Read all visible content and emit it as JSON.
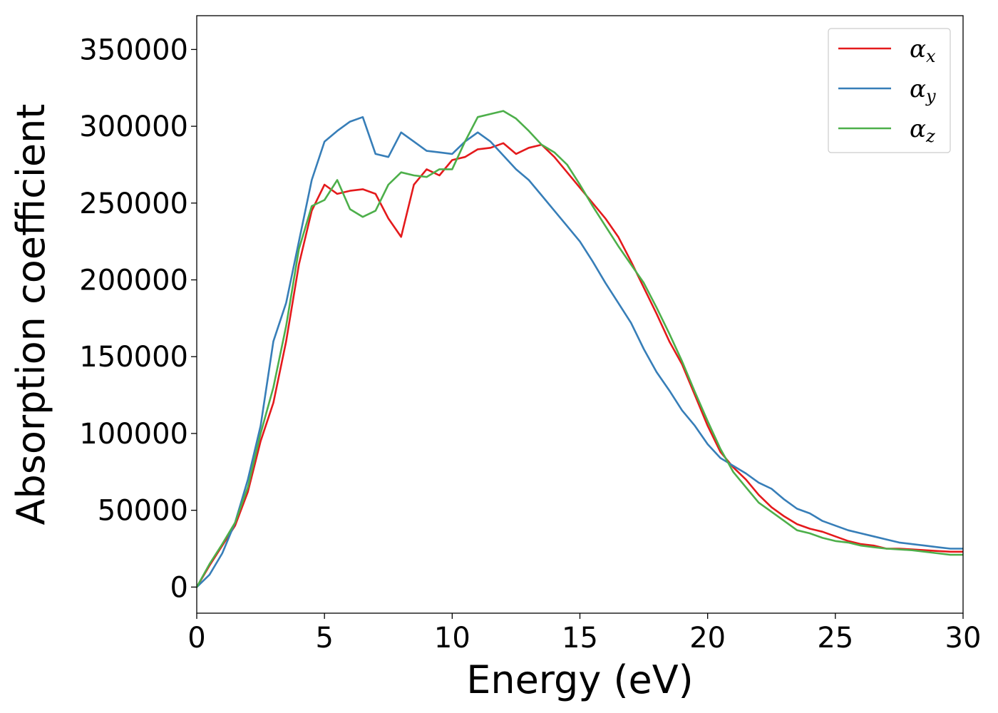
{
  "chart_data": {
    "type": "line",
    "title": "",
    "xlabel": "Energy (eV)",
    "ylabel": "Absorption coefficient",
    "xlim": [
      0,
      30
    ],
    "ylim": [
      -17000,
      372000
    ],
    "xticks": [
      0,
      5,
      10,
      15,
      20,
      25,
      30
    ],
    "yticks": [
      0,
      50000,
      100000,
      150000,
      200000,
      250000,
      300000,
      350000
    ],
    "grid": false,
    "legend_position": "top-right",
    "series": [
      {
        "name": "α_x",
        "label_base": "α",
        "label_sub": "x",
        "color": "#e41a1c",
        "x": [
          0,
          0.5,
          1,
          1.5,
          2,
          2.5,
          3,
          3.5,
          4,
          4.5,
          5,
          5.5,
          6,
          6.5,
          7,
          7.5,
          8,
          8.5,
          9,
          9.5,
          10,
          10.5,
          11,
          11.5,
          12,
          12.5,
          13,
          13.5,
          14,
          14.5,
          15,
          15.5,
          16,
          16.5,
          17,
          17.5,
          18,
          18.5,
          19,
          19.5,
          20,
          20.5,
          21,
          21.5,
          22,
          22.5,
          23,
          23.5,
          24,
          24.5,
          25,
          25.5,
          26,
          26.5,
          27,
          27.5,
          28,
          28.5,
          29,
          29.5,
          30
        ],
        "y": [
          0,
          14000,
          27000,
          40000,
          62000,
          95000,
          120000,
          160000,
          210000,
          245000,
          262000,
          256000,
          258000,
          259000,
          256000,
          240000,
          228000,
          262000,
          272000,
          268000,
          278000,
          280000,
          285000,
          286000,
          289000,
          282000,
          286000,
          288000,
          280000,
          270000,
          260000,
          250000,
          240000,
          228000,
          212000,
          195000,
          178000,
          160000,
          145000,
          125000,
          105000,
          88000,
          78000,
          70000,
          60000,
          52000,
          46000,
          41000,
          38000,
          36000,
          33000,
          30000,
          28000,
          27000,
          25000,
          25000,
          24500,
          24000,
          23500,
          23000,
          23000
        ]
      },
      {
        "name": "α_y",
        "label_base": "α",
        "label_sub": "y",
        "color": "#377eb8",
        "x": [
          0,
          0.5,
          1,
          1.5,
          2,
          2.5,
          3,
          3.5,
          4,
          4.5,
          5,
          5.5,
          6,
          6.5,
          7,
          7.5,
          8,
          8.5,
          9,
          9.5,
          10,
          10.5,
          11,
          11.5,
          12,
          12.5,
          13,
          13.5,
          14,
          14.5,
          15,
          15.5,
          16,
          16.5,
          17,
          17.5,
          18,
          18.5,
          19,
          19.5,
          20,
          20.5,
          21,
          21.5,
          22,
          22.5,
          23,
          23.5,
          24,
          24.5,
          25,
          25.5,
          26,
          26.5,
          27,
          27.5,
          28,
          28.5,
          29,
          29.5,
          30
        ],
        "y": [
          0,
          8000,
          22000,
          42000,
          70000,
          105000,
          160000,
          185000,
          225000,
          265000,
          290000,
          297000,
          303000,
          306000,
          282000,
          280000,
          296000,
          290000,
          284000,
          283000,
          282000,
          290000,
          296000,
          290000,
          281000,
          272000,
          265000,
          255000,
          245000,
          235000,
          225000,
          212000,
          198000,
          185000,
          172000,
          155000,
          140000,
          128000,
          115000,
          105000,
          93000,
          84000,
          79000,
          74000,
          68000,
          64000,
          57000,
          51000,
          48000,
          43000,
          40000,
          37000,
          35000,
          33000,
          31000,
          29000,
          28000,
          27000,
          26000,
          25000,
          25000
        ]
      },
      {
        "name": "α_z",
        "label_base": "α",
        "label_sub": "z",
        "color": "#4daf4a",
        "x": [
          0,
          0.5,
          1,
          1.5,
          2,
          2.5,
          3,
          3.5,
          4,
          4.5,
          5,
          5.5,
          6,
          6.5,
          7,
          7.5,
          8,
          8.5,
          9,
          9.5,
          10,
          10.5,
          11,
          11.5,
          12,
          12.5,
          13,
          13.5,
          14,
          14.5,
          15,
          15.5,
          16,
          16.5,
          17,
          17.5,
          18,
          18.5,
          19,
          19.5,
          20,
          20.5,
          21,
          21.5,
          22,
          22.5,
          23,
          23.5,
          24,
          24.5,
          25,
          25.5,
          26,
          26.5,
          27,
          27.5,
          28,
          28.5,
          29,
          29.5,
          30
        ],
        "y": [
          0,
          15000,
          28000,
          42000,
          65000,
          100000,
          130000,
          170000,
          220000,
          248000,
          252000,
          265000,
          246000,
          241000,
          245000,
          262000,
          270000,
          268000,
          267000,
          272000,
          272000,
          290000,
          306000,
          308000,
          310000,
          305000,
          297000,
          288000,
          283000,
          275000,
          262000,
          248000,
          235000,
          222000,
          210000,
          198000,
          182000,
          165000,
          147000,
          127000,
          108000,
          90000,
          75000,
          65000,
          55000,
          49000,
          43000,
          37000,
          35000,
          32000,
          30000,
          29000,
          27000,
          26000,
          25000,
          24500,
          24000,
          23000,
          22000,
          21000,
          21000
        ]
      }
    ]
  }
}
